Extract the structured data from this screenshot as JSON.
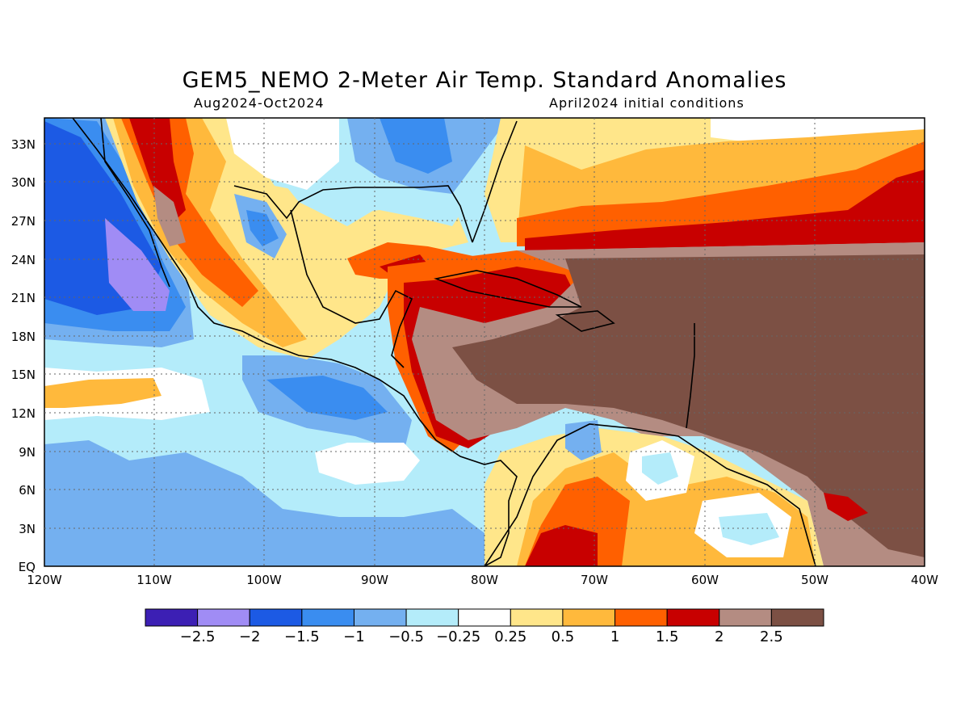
{
  "title": "GEM5_NEMO 2-Meter Air Temp. Standard Anomalies",
  "subtitle_left": "Aug2024-Oct2024",
  "subtitle_right": "April2024 initial conditions",
  "map": {
    "projection": "lat-lon",
    "lon_range": [
      -120,
      -40
    ],
    "lat_range": [
      0,
      35
    ],
    "lat_ticks": [
      "33N",
      "30N",
      "27N",
      "24N",
      "21N",
      "18N",
      "15N",
      "12N",
      "9N",
      "6N",
      "3N",
      "EQ"
    ],
    "lon_ticks": [
      "120W",
      "110W",
      "100W",
      "90W",
      "80W",
      "70W",
      "60W",
      "50W",
      "40W"
    ],
    "grid": "dotted"
  },
  "colorbar": {
    "colors": [
      "#3c1fb4",
      "#a08cf5",
      "#1c5ae4",
      "#3a8df0",
      "#74b0f0",
      "#b4ecfa",
      "#ffffff",
      "#ffe68a",
      "#ffb93c",
      "#ff6000",
      "#c80000",
      "#b48c82",
      "#7c5044"
    ],
    "labels": [
      "-2.5",
      "-2",
      "-1.5",
      "-1",
      "-0.5",
      "-0.25",
      "0.25",
      "0.5",
      "1",
      "1.5",
      "2",
      "2.5"
    ]
  },
  "regions": {
    "caribbean_anomaly": "2.5",
    "east_pacific_anomaly": "-0.5"
  }
}
